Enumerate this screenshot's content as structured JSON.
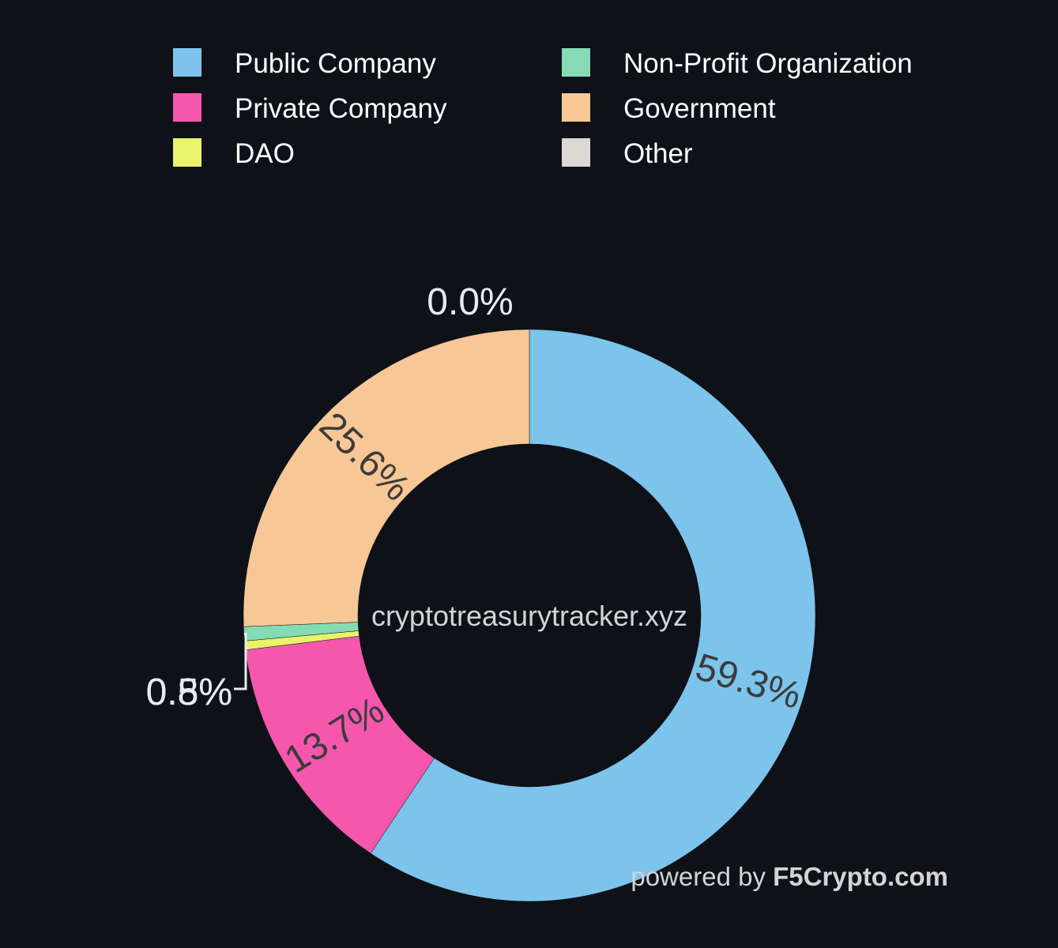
{
  "chart_data": {
    "type": "pie",
    "donut": true,
    "legend_position": "top",
    "series": [
      {
        "name": "Public Company",
        "value": 59.3,
        "label": "59.3%",
        "color": "#7cc4ec"
      },
      {
        "name": "Private Company",
        "value": 13.7,
        "label": "13.7%",
        "color": "#f557ad"
      },
      {
        "name": "DAO",
        "value": 0.5,
        "label": "0.5%",
        "color": "#e9f36b"
      },
      {
        "name": "Non-Profit Organization",
        "value": 0.8,
        "label": "0.8%",
        "color": "#84dbb4"
      },
      {
        "name": "Government",
        "value": 25.6,
        "label": "25.6%",
        "color": "#f7c795"
      },
      {
        "name": "Other",
        "value": 0.0,
        "label": "0.0%",
        "color": "#dcd8d6"
      }
    ]
  },
  "watermark": {
    "center_text": "cryptotreasurytracker.xyz",
    "powered_prefix": "powered by",
    "powered_brand": "F5Crypto.com"
  },
  "colors": {
    "background": "#0e1117",
    "inside_label": "#3b3b3b",
    "outside_label": "#e8eaf0",
    "legend_text": "#ffffff",
    "watermark": "#d4d4d4"
  }
}
